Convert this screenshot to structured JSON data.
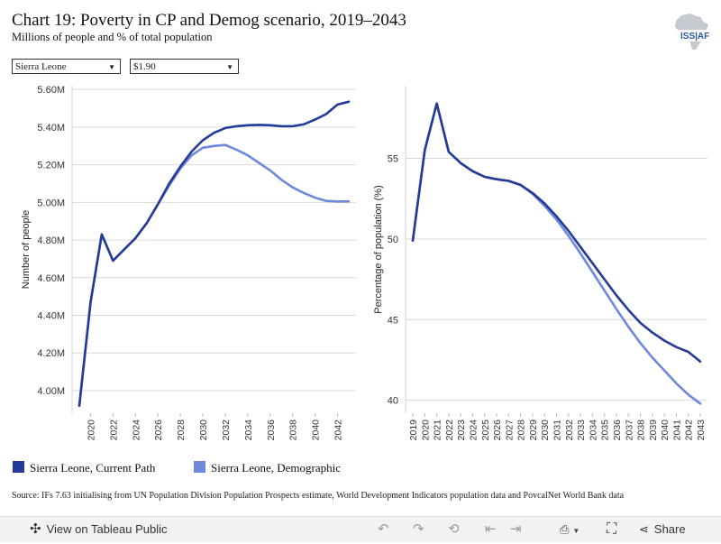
{
  "header": {
    "title": "Chart 19: Poverty in CP and Demog scenario, 2019–2043",
    "subtitle": "Millions of people and % of total population",
    "logo_text": "ISS|AF"
  },
  "filters": {
    "country": "Sierra Leone",
    "poverty_line": "$1.90"
  },
  "colors": {
    "current_path": "#233b96",
    "demographic": "#6e89dc",
    "grid": "#d9d9d9"
  },
  "legend": [
    {
      "label": "Sierra Leone, Current Path",
      "color": "#233b96"
    },
    {
      "label": "Sierra Leone, Demographic",
      "color": "#6e89dc"
    }
  ],
  "source": "Source: IFs 7.63 initialising from UN Population Division Population Prospects estimate, World Development Indicators population data and PovcalNet World Bank data",
  "toolbar": {
    "view_label": "View on Tableau Public",
    "share_label": "Share"
  },
  "chart_data": [
    {
      "type": "line",
      "ylabel": "Number of people",
      "ylim": [
        3.88,
        5.62
      ],
      "yticks": [
        4.0,
        4.2,
        4.4,
        4.6,
        4.8,
        5.0,
        5.2,
        5.4,
        5.6
      ],
      "ytick_labels": [
        "4.00M",
        "4.20M",
        "4.40M",
        "4.60M",
        "4.80M",
        "5.00M",
        "5.20M",
        "5.40M",
        "5.60M"
      ],
      "xticks": [
        "2020",
        "2022",
        "2024",
        "2026",
        "2028",
        "2030",
        "2032",
        "2034",
        "2036",
        "2038",
        "2040",
        "2042"
      ],
      "x": [
        2019,
        2020,
        2021,
        2022,
        2023,
        2024,
        2025,
        2026,
        2027,
        2028,
        2029,
        2030,
        2031,
        2032,
        2033,
        2034,
        2035,
        2036,
        2037,
        2038,
        2039,
        2040,
        2041,
        2042,
        2043
      ],
      "series": [
        {
          "name": "Sierra Leone, Current Path",
          "values": [
            3.92,
            4.47,
            4.83,
            4.69,
            4.75,
            4.81,
            4.89,
            4.99,
            5.1,
            5.19,
            5.27,
            5.33,
            5.37,
            5.395,
            5.405,
            5.41,
            5.412,
            5.41,
            5.405,
            5.405,
            5.415,
            5.44,
            5.47,
            5.52,
            5.535
          ]
        },
        {
          "name": "Sierra Leone, Demographic",
          "values": [
            3.92,
            4.47,
            4.83,
            4.69,
            4.75,
            4.81,
            4.89,
            4.99,
            5.09,
            5.18,
            5.25,
            5.29,
            5.3,
            5.305,
            5.28,
            5.25,
            5.21,
            5.17,
            5.12,
            5.08,
            5.05,
            5.025,
            5.008,
            5.005,
            5.005
          ]
        }
      ]
    },
    {
      "type": "line",
      "ylabel": "Percentage of population (%)",
      "ylim": [
        39.2,
        59.5
      ],
      "yticks": [
        40,
        45,
        50,
        55
      ],
      "ytick_labels": [
        "40",
        "45",
        "50",
        "55"
      ],
      "xticks": [
        "2019",
        "2020",
        "2021",
        "2022",
        "2023",
        "2024",
        "2025",
        "2026",
        "2027",
        "2028",
        "2029",
        "2030",
        "2031",
        "2032",
        "2033",
        "2034",
        "2035",
        "2036",
        "2037",
        "2038",
        "2039",
        "2040",
        "2041",
        "2042",
        "2043"
      ],
      "x": [
        2019,
        2020,
        2021,
        2022,
        2023,
        2024,
        2025,
        2026,
        2027,
        2028,
        2029,
        2030,
        2031,
        2032,
        2033,
        2034,
        2035,
        2036,
        2037,
        2038,
        2039,
        2040,
        2041,
        2042,
        2043
      ],
      "series": [
        {
          "name": "Sierra Leone, Current Path",
          "values": [
            49.9,
            55.5,
            58.4,
            55.4,
            54.7,
            54.2,
            53.85,
            53.7,
            53.6,
            53.35,
            52.85,
            52.2,
            51.4,
            50.5,
            49.5,
            48.5,
            47.5,
            46.5,
            45.6,
            44.8,
            44.2,
            43.7,
            43.3,
            43.0,
            42.4
          ]
        },
        {
          "name": "Sierra Leone, Demographic",
          "values": [
            49.9,
            55.5,
            58.4,
            55.4,
            54.7,
            54.2,
            53.85,
            53.7,
            53.6,
            53.35,
            52.8,
            52.05,
            51.2,
            50.2,
            49.1,
            47.95,
            46.8,
            45.65,
            44.55,
            43.55,
            42.65,
            41.85,
            41.05,
            40.35,
            39.8
          ]
        }
      ]
    }
  ]
}
